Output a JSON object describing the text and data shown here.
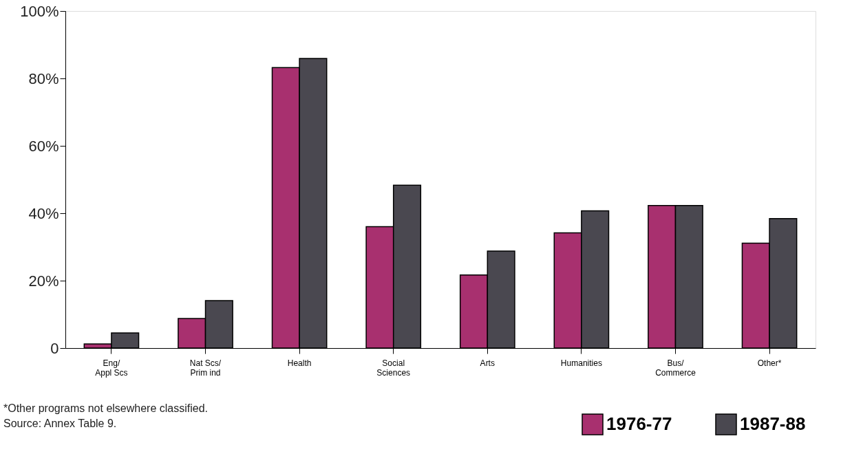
{
  "chart_data": {
    "type": "bar",
    "categories": [
      "Eng/\nAppl Scs",
      "Nat Scs/\nPrim ind",
      "Health",
      "Social\nSciences",
      "Arts",
      "Humanities",
      "Bus/\nCommerce",
      "Other*"
    ],
    "series": [
      {
        "name": "1976-77",
        "color": "#a8306f",
        "values": [
          1.2,
          8.8,
          83.2,
          36.0,
          21.7,
          34.2,
          42.3,
          31.1
        ]
      },
      {
        "name": "1987-88",
        "color": "#4a4850",
        "values": [
          4.5,
          14.1,
          85.9,
          48.3,
          28.8,
          40.7,
          42.3,
          38.4
        ]
      }
    ],
    "ylim": [
      0,
      100
    ],
    "yticks": [
      0,
      {
        "value": 20,
        "label": "20%"
      },
      {
        "value": 40,
        "label": "40%"
      },
      {
        "value": 60,
        "label": "60%"
      },
      {
        "value": 80,
        "label": "80%"
      },
      {
        "value": 100,
        "label": "100%"
      }
    ],
    "grid": false,
    "legend": "bottom right",
    "annotations": [
      "*Other programs not elsewhere classified.",
      "Source: Annex Table 9."
    ]
  }
}
